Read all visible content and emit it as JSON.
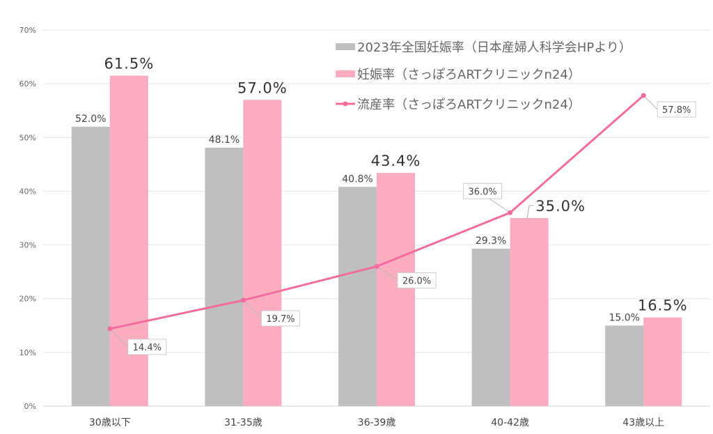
{
  "chart_data": {
    "type": "bar",
    "title": "",
    "xlabel": "",
    "ylabel": "",
    "ylim": [
      0,
      70
    ],
    "yticks": [
      "0%",
      "10%",
      "20%",
      "30%",
      "40%",
      "50%",
      "60%",
      "70%"
    ],
    "grid": true,
    "legend_position": "top-right",
    "categories": [
      "30歳以下",
      "31-35歳",
      "36-39歳",
      "40-42歳",
      "43歳以上"
    ],
    "series": [
      {
        "name": "2023年全国妊娠率（日本産婦人科学会HPより）",
        "type": "bar",
        "color": "#bfbfbf",
        "values": [
          52.0,
          48.1,
          40.8,
          29.3,
          15.0
        ],
        "labels": [
          "52.0%",
          "48.1%",
          "40.8%",
          "29.3%",
          "15.0%"
        ]
      },
      {
        "name": "妊娠率（さっぽろARTクリニックn24）",
        "type": "bar",
        "color": "#fbacbf",
        "values": [
          61.5,
          57.0,
          43.4,
          35.0,
          16.5
        ],
        "labels": [
          "61.5%",
          "57.0%",
          "43.4%",
          "35.0%",
          "16.5%"
        ]
      },
      {
        "name": "流産率（さっぽろARTクリニックn24）",
        "type": "line",
        "color": "#f36d9c",
        "values": [
          14.4,
          19.7,
          26.0,
          36.0,
          57.8
        ],
        "labels": [
          "14.4%",
          "19.7%",
          "26.0%",
          "36.0%",
          "57.8%"
        ]
      }
    ]
  }
}
